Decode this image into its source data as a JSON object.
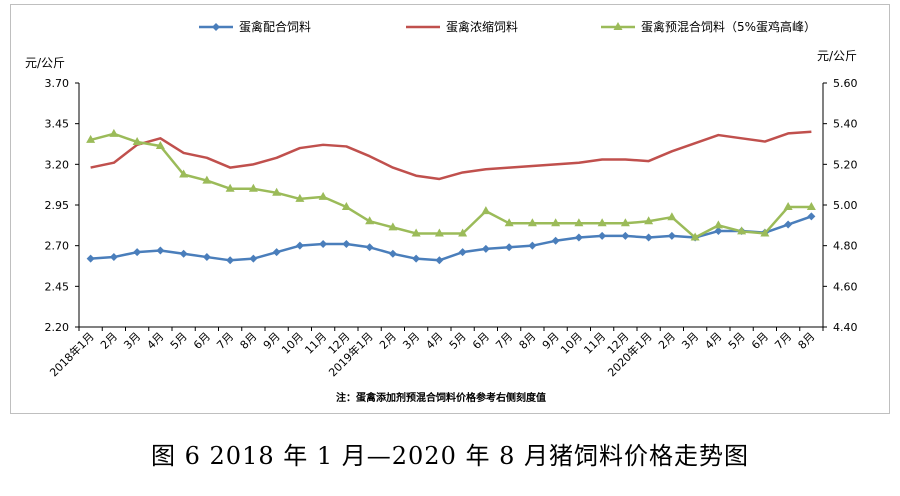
{
  "chart_data": {
    "type": "line",
    "caption": "图 6   2018 年 1 月—2020 年 8 月猪饲料价格走势图",
    "note": "注：蛋禽添加剂预混合饲料价格参考右侧刻度值",
    "left_axis": {
      "unit": "元/公斤",
      "ylim": [
        2.2,
        3.7
      ],
      "ticks": [
        "2.20",
        "2.45",
        "2.70",
        "2.95",
        "3.20",
        "3.45",
        "3.70"
      ]
    },
    "right_axis": {
      "unit": "元/公斤",
      "ylim": [
        4.4,
        5.6
      ],
      "ticks": [
        "4.40",
        "4.60",
        "4.80",
        "5.00",
        "5.20",
        "5.40",
        "5.60"
      ]
    },
    "categories": [
      "2018年1月",
      "2月",
      "3月",
      "4月",
      "5月",
      "6月",
      "7月",
      "8月",
      "9月",
      "10月",
      "11月",
      "12月",
      "2019年1月",
      "2月",
      "3月",
      "4月",
      "5月",
      "6月",
      "7月",
      "8月",
      "9月",
      "10月",
      "11月",
      "12月",
      "2020年1月",
      "2月",
      "3月",
      "4月",
      "5月",
      "6月",
      "7月",
      "8月"
    ],
    "grid": false,
    "legend_position": "top",
    "series": [
      {
        "name": "蛋禽配合饲料",
        "axis": "left",
        "color": "#4a7ebb",
        "marker": "diamond",
        "values": [
          2.62,
          2.63,
          2.66,
          2.67,
          2.65,
          2.63,
          2.61,
          2.62,
          2.66,
          2.7,
          2.71,
          2.71,
          2.69,
          2.65,
          2.62,
          2.61,
          2.66,
          2.68,
          2.69,
          2.7,
          2.73,
          2.75,
          2.76,
          2.76,
          2.75,
          2.76,
          2.75,
          2.79,
          2.79,
          2.78,
          2.83,
          2.88
        ]
      },
      {
        "name": "蛋禽浓缩饲料",
        "axis": "left",
        "color": "#c0504d",
        "marker": "none",
        "values": [
          3.18,
          3.21,
          3.32,
          3.36,
          3.27,
          3.24,
          3.18,
          3.2,
          3.24,
          3.3,
          3.32,
          3.31,
          3.25,
          3.18,
          3.13,
          3.11,
          3.15,
          3.17,
          3.18,
          3.19,
          3.2,
          3.21,
          3.23,
          3.23,
          3.22,
          3.28,
          3.33,
          3.38,
          3.36,
          3.34,
          3.39,
          3.4
        ]
      },
      {
        "name": "蛋禽预混合饲料（5%蛋鸡高峰）",
        "axis": "right",
        "color": "#9bbb59",
        "marker": "triangle",
        "values": [
          5.32,
          5.35,
          5.31,
          5.29,
          5.15,
          5.12,
          5.08,
          5.08,
          5.06,
          5.03,
          5.04,
          4.99,
          4.92,
          4.89,
          4.86,
          4.86,
          4.86,
          4.97,
          4.91,
          4.91,
          4.91,
          4.91,
          4.91,
          4.91,
          4.92,
          4.94,
          4.84,
          4.9,
          4.87,
          4.86,
          4.99,
          4.99
        ]
      }
    ]
  }
}
